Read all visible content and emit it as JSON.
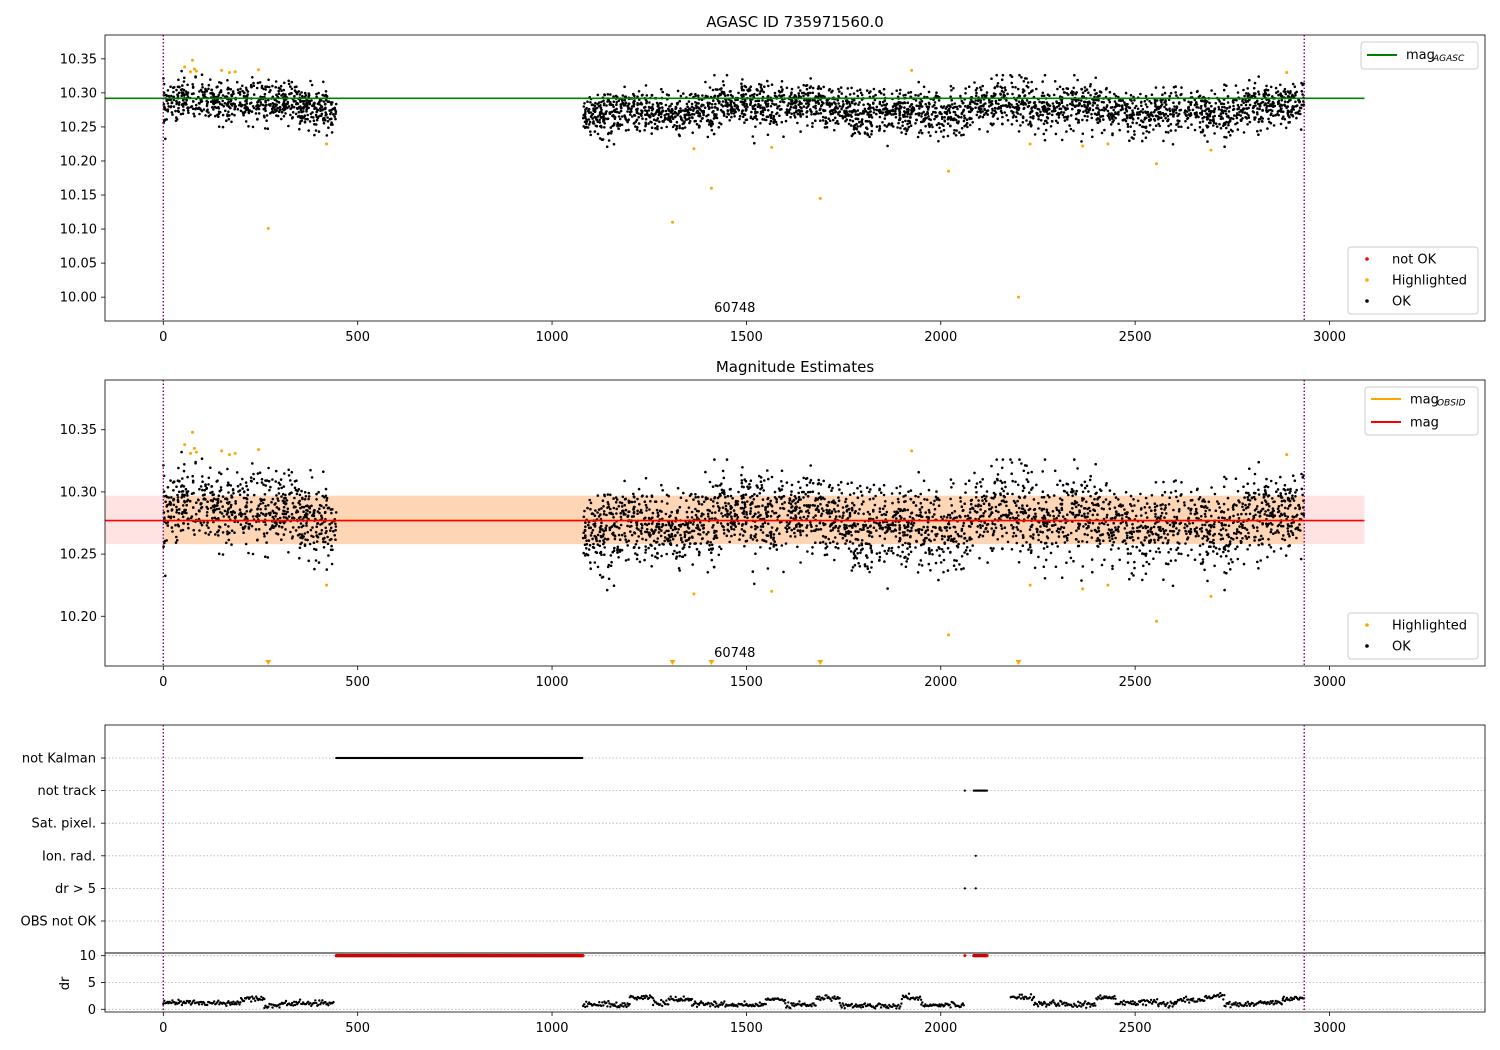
{
  "chart_data": [
    {
      "type": "scatter",
      "title": "AGASC ID 735971560.0",
      "xlim": [
        -150,
        3400
      ],
      "ylim": [
        9.965,
        10.385
      ],
      "x_ticks": [
        0,
        500,
        1000,
        1500,
        2000,
        2500,
        3000
      ],
      "y_ticks": [
        10.0,
        10.05,
        10.1,
        10.15,
        10.2,
        10.25,
        10.3,
        10.35
      ],
      "y_tick_labels": [
        "10.00",
        "10.05",
        "10.10",
        "10.15",
        "10.20",
        "10.25",
        "10.30",
        "10.35"
      ],
      "obsid_label": "60748",
      "obsid_label_x": 1470,
      "obs_boundaries": [
        0,
        2935
      ],
      "mag_agasc": 10.292,
      "mag_agasc_line_xmax": 3090,
      "ok_segments": [
        {
          "x_start": 0,
          "x_end": 445,
          "y_mean": 10.282,
          "y_sigma": 0.017
        },
        {
          "x_start": 1080,
          "x_end": 2935,
          "y_mean": 10.276,
          "y_sigma": 0.019
        }
      ],
      "highlighted_points": [
        [
          55,
          10.338
        ],
        [
          70,
          10.331
        ],
        [
          75,
          10.348
        ],
        [
          80,
          10.335
        ],
        [
          85,
          10.332
        ],
        [
          150,
          10.333
        ],
        [
          170,
          10.33
        ],
        [
          185,
          10.331
        ],
        [
          245,
          10.334
        ],
        [
          270,
          10.101
        ],
        [
          420,
          10.225
        ],
        [
          1310,
          10.11
        ],
        [
          1365,
          10.218
        ],
        [
          1410,
          10.16
        ],
        [
          1565,
          10.22
        ],
        [
          1690,
          10.145
        ],
        [
          1925,
          10.333
        ],
        [
          2020,
          10.185
        ],
        [
          2200,
          10.0
        ],
        [
          2230,
          10.225
        ],
        [
          2365,
          10.222
        ],
        [
          2430,
          10.225
        ],
        [
          2555,
          10.196
        ],
        [
          2695,
          10.216
        ],
        [
          2890,
          10.33
        ]
      ],
      "legend_lines": [
        {
          "label": "mag",
          "subscript": "AGASC",
          "color": "#008000"
        }
      ],
      "legend_markers": [
        {
          "label": "not OK",
          "color": "#ff0000"
        },
        {
          "label": "Highlighted",
          "color": "#ffa500"
        },
        {
          "label": "OK",
          "color": "#000000"
        }
      ]
    },
    {
      "type": "scatter",
      "title": "Magnitude Estimates",
      "xlim": [
        -150,
        3400
      ],
      "ylim": [
        10.16,
        10.39
      ],
      "x_ticks": [
        0,
        500,
        1000,
        1500,
        2000,
        2500,
        3000
      ],
      "y_ticks": [
        10.2,
        10.25,
        10.3,
        10.35
      ],
      "y_tick_labels": [
        "10.20",
        "10.25",
        "10.30",
        "10.35"
      ],
      "obsid_label": "60748",
      "obsid_label_x": 1470,
      "obs_boundaries": [
        0,
        2935
      ],
      "mag": 10.277,
      "mag_band": [
        10.258,
        10.297
      ],
      "mag_band_xmax": 3090,
      "mag_obsid": 10.277,
      "mag_obsid_band": [
        10.258,
        10.297
      ],
      "mag_obsid_xrange": [
        0,
        2935
      ],
      "below_range_markers_x": [
        270,
        1310,
        1410,
        1690,
        2200
      ],
      "legend_lines": [
        {
          "label": "mag",
          "subscript": "OBSID",
          "color": "#ffa500"
        },
        {
          "label": "mag",
          "subscript": "",
          "color": "#ff0000"
        }
      ],
      "legend_markers": [
        {
          "label": "Highlighted",
          "color": "#ffa500"
        },
        {
          "label": "OK",
          "color": "#000000"
        }
      ]
    },
    {
      "type": "scatter",
      "title": "",
      "xlim": [
        -150,
        3400
      ],
      "x_ticks": [
        0,
        500,
        1000,
        1500,
        2000,
        2500,
        3000
      ],
      "obs_boundaries": [
        0,
        2935
      ],
      "flag_labels": [
        "not Kalman",
        "not track",
        "Sat. pixel.",
        "Ion. rad.",
        "dr > 5",
        "OBS not OK"
      ],
      "flags": [
        {
          "label": "not Kalman",
          "ranges": [
            [
              445,
              1080
            ]
          ],
          "points": []
        },
        {
          "label": "not track",
          "ranges": [
            [
              2085,
              2120
            ]
          ],
          "points": [
            2062
          ]
        },
        {
          "label": "Sat. pixel.",
          "ranges": [],
          "points": []
        },
        {
          "label": "Ion. rad.",
          "ranges": [],
          "points": [
            2090
          ]
        },
        {
          "label": "dr > 5",
          "ranges": [],
          "points": [
            2062,
            2090
          ]
        },
        {
          "label": "OBS not OK",
          "ranges": [],
          "points": []
        }
      ],
      "dr_ylabel": "dr",
      "dr_ylim": [
        -0.5,
        10.5
      ],
      "dr_ticks": [
        0,
        5,
        10
      ],
      "dr_capped_ranges": [
        [
          445,
          1080
        ],
        [
          2085,
          2120
        ]
      ],
      "dr_capped_points": [
        2062
      ],
      "dr_capped_value": 10,
      "dr_segments": [
        [
          0,
          40,
          1.3
        ],
        [
          40,
          200,
          1.2
        ],
        [
          200,
          260,
          2.0
        ],
        [
          260,
          300,
          0.7
        ],
        [
          300,
          440,
          1.1
        ],
        [
          1080,
          1150,
          1.0
        ],
        [
          1150,
          1200,
          0.8
        ],
        [
          1200,
          1260,
          2.2
        ],
        [
          1260,
          1300,
          1.2
        ],
        [
          1300,
          1360,
          1.8
        ],
        [
          1360,
          1420,
          1.0
        ],
        [
          1420,
          1550,
          0.8
        ],
        [
          1550,
          1600,
          1.9
        ],
        [
          1600,
          1680,
          0.9
        ],
        [
          1680,
          1740,
          2.1
        ],
        [
          1740,
          1900,
          0.7
        ],
        [
          1900,
          1950,
          2.2
        ],
        [
          1950,
          2060,
          0.8
        ],
        [
          2180,
          2240,
          2.3
        ],
        [
          2240,
          2330,
          1.1
        ],
        [
          2330,
          2400,
          0.8
        ],
        [
          2400,
          2450,
          2.2
        ],
        [
          2450,
          2560,
          1.3
        ],
        [
          2560,
          2600,
          0.9
        ],
        [
          2600,
          2680,
          1.6
        ],
        [
          2680,
          2730,
          2.4
        ],
        [
          2730,
          2820,
          0.9
        ],
        [
          2820,
          2880,
          1.2
        ],
        [
          2880,
          2935,
          2.0
        ]
      ]
    }
  ]
}
